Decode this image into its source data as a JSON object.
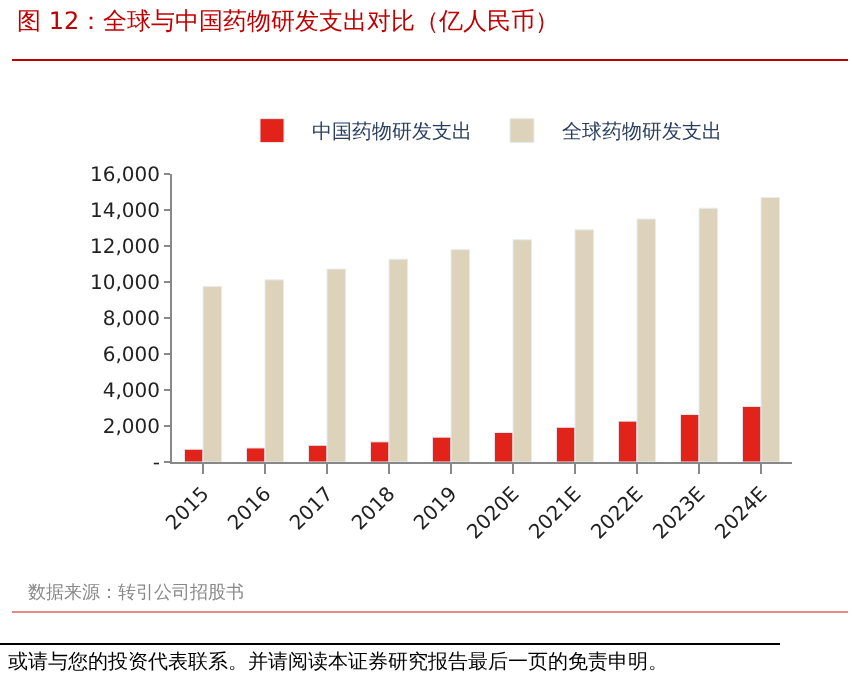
{
  "chart_data": {
    "type": "bar",
    "title": "图 12：全球与中国药物研发支出对比（亿人民币）",
    "categories": [
      "2015",
      "2016",
      "2017",
      "2018",
      "2019",
      "2020E",
      "2021E",
      "2022E",
      "2023E",
      "2024E"
    ],
    "series": [
      {
        "name": "中国药物研发支出",
        "color": "#e2231a",
        "values": [
          710,
          780,
          930,
          1120,
          1380,
          1640,
          1930,
          2270,
          2640,
          3090
        ]
      },
      {
        "name": "全球药物研发支出",
        "color": "#ddd3bb",
        "values": [
          9750,
          10120,
          10720,
          11270,
          11800,
          12350,
          12900,
          13500,
          14100,
          14700
        ]
      }
    ],
    "ylim": [
      0,
      16000
    ],
    "yticks": [
      {
        "value": 0,
        "label": "-"
      },
      {
        "value": 2000,
        "label": "2,000"
      },
      {
        "value": 4000,
        "label": "4,000"
      },
      {
        "value": 6000,
        "label": "6,000"
      },
      {
        "value": 8000,
        "label": "8,000"
      },
      {
        "value": 10000,
        "label": "10,000"
      },
      {
        "value": 12000,
        "label": "12,000"
      },
      {
        "value": 14000,
        "label": "14,000"
      },
      {
        "value": 16000,
        "label": "16,000"
      }
    ],
    "legend": "top",
    "annotations": [
      "数据来源：转引公司招股书",
      "或请与您的投资代表联系。并请阅读本证券研究报告最后一页的免责申明。"
    ]
  }
}
